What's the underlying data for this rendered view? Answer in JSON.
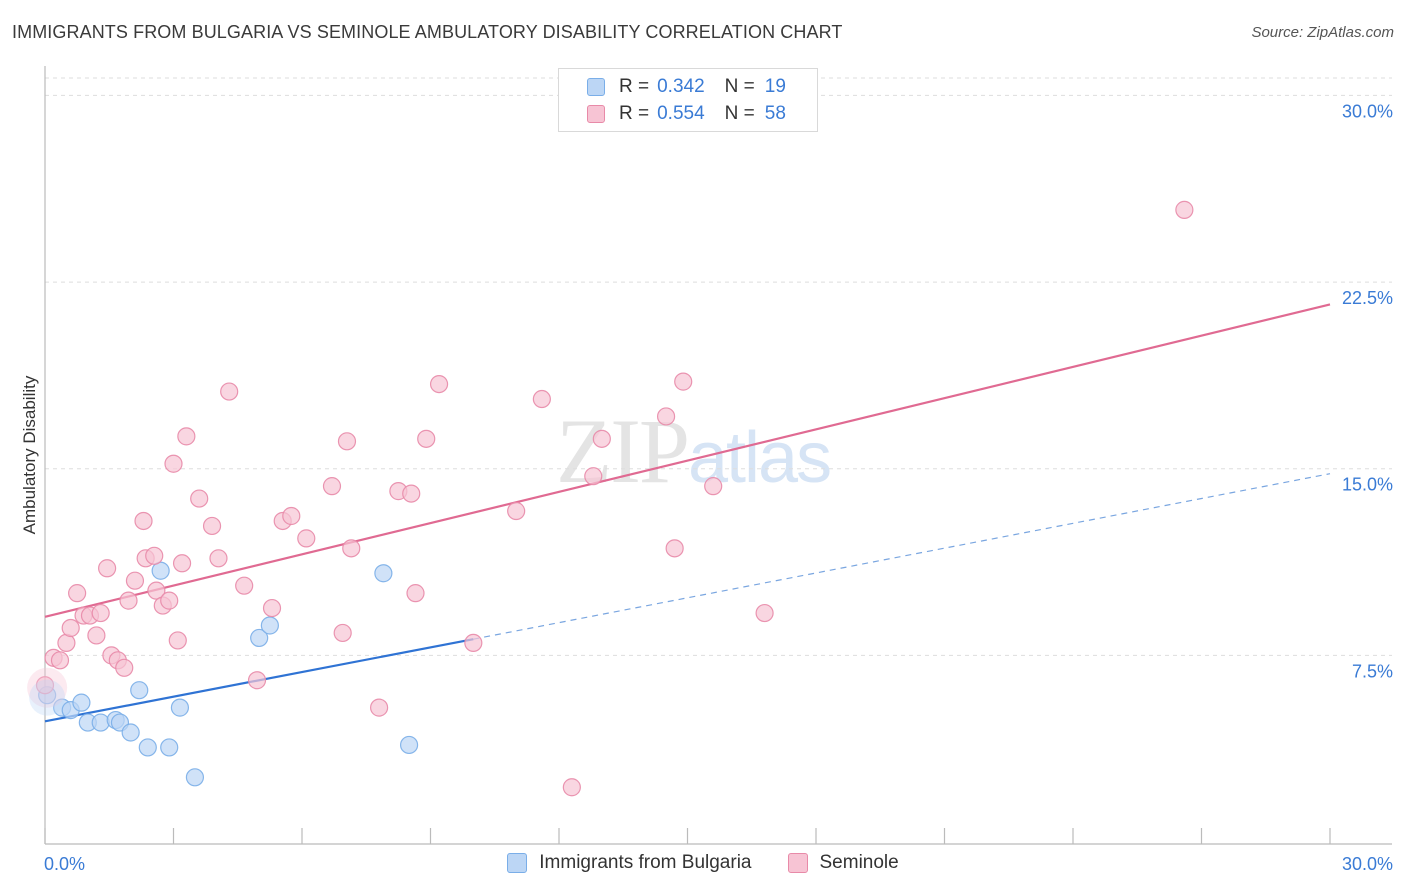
{
  "title": "IMMIGRANTS FROM BULGARIA VS SEMINOLE AMBULATORY DISABILITY CORRELATION CHART",
  "source": "Source: ZipAtlas.com",
  "watermark": {
    "zip": "ZIP",
    "atlas": "atlas"
  },
  "legend": {
    "rows": [
      {
        "r_label": "R =",
        "r_value": "0.342",
        "n_label": "N =",
        "n_value": "19",
        "color": "#a8c8f0"
      },
      {
        "r_label": "R =",
        "r_value": "0.554",
        "n_label": "N =",
        "n_value": "58",
        "color": "#f6b6cb"
      }
    ]
  },
  "bottom_legend": [
    {
      "label": "Immigrants from Bulgaria",
      "color": "#a8c8f0"
    },
    {
      "label": "Seminole",
      "color": "#f6b6cb"
    }
  ],
  "chart_data": {
    "type": "scatter",
    "xlabel": "",
    "ylabel": "Ambulatory Disability",
    "xlim": [
      0,
      30
    ],
    "ylim": [
      0,
      30.7
    ],
    "x_tick_labels": [
      "0.0%",
      "30.0%"
    ],
    "y_ticks": [
      7.5,
      15.0,
      22.5,
      30.0
    ],
    "y_tick_labels": [
      "7.5%",
      "15.0%",
      "22.5%",
      "30.0%"
    ],
    "grid": true,
    "series": [
      {
        "name": "Immigrants from Bulgaria",
        "color": "#7aaee8",
        "fill": "#bcd6f5",
        "points": [
          [
            0.05,
            5.9
          ],
          [
            0.4,
            5.4
          ],
          [
            0.6,
            5.3
          ],
          [
            0.85,
            5.6
          ],
          [
            1.0,
            4.8
          ],
          [
            1.3,
            4.8
          ],
          [
            1.65,
            4.9
          ],
          [
            1.75,
            4.8
          ],
          [
            2.0,
            4.4
          ],
          [
            2.2,
            6.1
          ],
          [
            2.4,
            3.8
          ],
          [
            2.7,
            10.9
          ],
          [
            2.9,
            3.8
          ],
          [
            3.15,
            5.4
          ],
          [
            3.5,
            2.6
          ],
          [
            5.0,
            8.2
          ],
          [
            5.25,
            8.7
          ],
          [
            7.9,
            10.8
          ],
          [
            8.5,
            3.9
          ]
        ],
        "trend": {
          "x": [
            0,
            10.0
          ],
          "y": [
            4.85,
            8.15
          ]
        },
        "trend_dashed": {
          "x": [
            10.0,
            30.0
          ],
          "y": [
            8.15,
            14.8
          ]
        }
      },
      {
        "name": "Seminole",
        "color": "#e88aa8",
        "fill": "#f7c4d4",
        "points": [
          [
            0.0,
            6.3
          ],
          [
            0.2,
            7.4
          ],
          [
            0.35,
            7.3
          ],
          [
            0.5,
            8.0
          ],
          [
            0.6,
            8.6
          ],
          [
            0.75,
            10.0
          ],
          [
            0.9,
            9.1
          ],
          [
            1.05,
            9.1
          ],
          [
            1.2,
            8.3
          ],
          [
            1.3,
            9.2
          ],
          [
            1.45,
            11.0
          ],
          [
            1.55,
            7.5
          ],
          [
            1.7,
            7.3
          ],
          [
            1.85,
            7.0
          ],
          [
            1.95,
            9.7
          ],
          [
            2.1,
            10.5
          ],
          [
            2.3,
            12.9
          ],
          [
            2.35,
            11.4
          ],
          [
            2.55,
            11.5
          ],
          [
            2.6,
            10.1
          ],
          [
            2.75,
            9.5
          ],
          [
            2.9,
            9.7
          ],
          [
            3.0,
            15.2
          ],
          [
            3.1,
            8.1
          ],
          [
            3.2,
            11.2
          ],
          [
            3.3,
            16.3
          ],
          [
            3.6,
            13.8
          ],
          [
            3.9,
            12.7
          ],
          [
            4.05,
            11.4
          ],
          [
            4.3,
            18.1
          ],
          [
            4.65,
            10.3
          ],
          [
            4.95,
            6.5
          ],
          [
            5.3,
            9.4
          ],
          [
            5.55,
            12.9
          ],
          [
            5.75,
            13.1
          ],
          [
            6.1,
            12.2
          ],
          [
            6.7,
            14.3
          ],
          [
            6.95,
            8.4
          ],
          [
            7.05,
            16.1
          ],
          [
            7.15,
            11.8
          ],
          [
            7.8,
            5.4
          ],
          [
            8.25,
            14.1
          ],
          [
            8.55,
            14.0
          ],
          [
            8.65,
            10.0
          ],
          [
            8.9,
            16.2
          ],
          [
            9.2,
            18.4
          ],
          [
            10.0,
            8.0
          ],
          [
            11.0,
            13.3
          ],
          [
            11.6,
            17.8
          ],
          [
            12.3,
            2.2
          ],
          [
            12.8,
            14.7
          ],
          [
            13.0,
            16.2
          ],
          [
            14.5,
            17.1
          ],
          [
            14.7,
            11.8
          ],
          [
            14.9,
            18.5
          ],
          [
            15.6,
            14.3
          ],
          [
            16.8,
            9.2
          ],
          [
            26.6,
            25.4
          ]
        ],
        "trend": {
          "x": [
            0,
            30.0
          ],
          "y": [
            9.05,
            21.6
          ]
        }
      }
    ]
  }
}
